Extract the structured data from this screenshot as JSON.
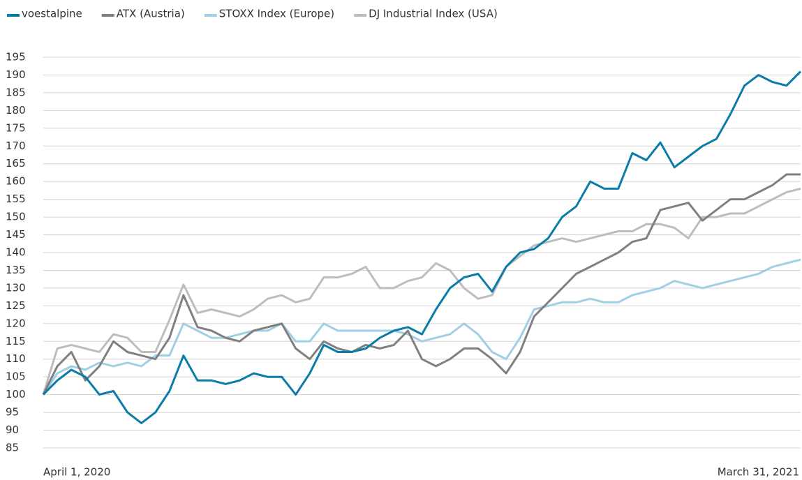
{
  "chart_data": {
    "type": "line",
    "categories": [
      "April 1, 2020",
      null,
      null,
      null,
      null,
      null,
      null,
      null,
      null,
      null,
      null,
      null,
      null,
      null,
      null,
      null,
      null,
      null,
      null,
      null,
      null,
      null,
      null,
      null,
      null,
      null,
      null,
      null,
      null,
      null,
      null,
      null,
      null,
      null,
      null,
      null,
      null,
      null,
      null,
      null,
      null,
      null,
      null,
      null,
      null,
      null,
      null,
      null,
      null,
      null,
      null,
      null,
      null,
      null,
      "March 31, 2021"
    ],
    "series": [
      {
        "name": "voestalpine",
        "color": "#0b7ca8",
        "values": [
          100,
          104,
          107,
          105,
          100,
          101,
          95,
          92,
          95,
          101,
          111,
          104,
          104,
          103,
          104,
          106,
          105,
          105,
          100,
          106,
          114,
          112,
          112,
          113,
          116,
          118,
          119,
          117,
          124,
          130,
          133,
          134,
          129,
          136,
          140,
          141,
          144,
          150,
          153,
          160,
          158,
          158,
          168,
          166,
          171,
          164,
          167,
          170,
          172,
          179,
          187,
          190,
          188,
          187,
          191
        ]
      },
      {
        "name": "ATX (Austria)",
        "color": "#808080",
        "values": [
          100,
          108,
          112,
          104,
          108,
          115,
          112,
          111,
          110,
          116,
          128,
          119,
          118,
          116,
          115,
          118,
          119,
          120,
          113,
          110,
          115,
          113,
          112,
          114,
          113,
          114,
          118,
          110,
          108,
          110,
          113,
          113,
          110,
          106,
          112,
          122,
          126,
          130,
          134,
          136,
          138,
          140,
          143,
          144,
          152,
          153,
          154,
          149,
          152,
          155,
          155,
          157,
          159,
          162,
          162
        ]
      },
      {
        "name": "STOXX Index (Europe)",
        "color": "#9fd0e3",
        "values": [
          100,
          106,
          108,
          107,
          109,
          108,
          109,
          108,
          111,
          111,
          120,
          118,
          116,
          116,
          117,
          118,
          118,
          120,
          115,
          115,
          120,
          118,
          118,
          118,
          118,
          118,
          117,
          115,
          116,
          117,
          120,
          117,
          112,
          110,
          116,
          124,
          125,
          126,
          126,
          127,
          126,
          126,
          128,
          129,
          130,
          132,
          131,
          130,
          131,
          132,
          133,
          134,
          136,
          137,
          138
        ]
      },
      {
        "name": "DJ Industrial Index (USA)",
        "color": "#bdbdbd",
        "values": [
          100,
          113,
          114,
          113,
          112,
          117,
          116,
          112,
          112,
          121,
          131,
          123,
          124,
          123,
          122,
          124,
          127,
          128,
          126,
          127,
          133,
          133,
          134,
          136,
          130,
          130,
          132,
          133,
          137,
          135,
          130,
          127,
          128,
          136,
          139,
          142,
          143,
          144,
          143,
          144,
          145,
          146,
          146,
          148,
          148,
          147,
          144,
          150,
          150,
          151,
          151,
          153,
          155,
          157,
          158
        ]
      }
    ],
    "ylim": [
      85,
      195
    ],
    "yticks": [
      85,
      90,
      95,
      100,
      105,
      110,
      115,
      120,
      125,
      130,
      135,
      140,
      145,
      150,
      155,
      160,
      165,
      170,
      175,
      180,
      185,
      190,
      195
    ],
    "grid": true,
    "legend": "top"
  }
}
